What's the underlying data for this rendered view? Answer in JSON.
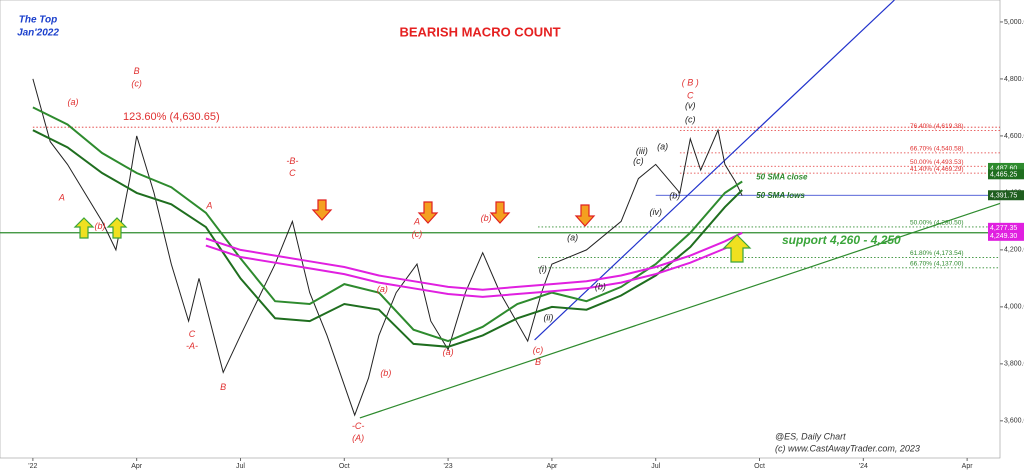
{
  "chart_data": {
    "type": "line",
    "title": "BEARISH MACRO COUNT",
    "top_label": "The Top",
    "top_date": "Jan'2022",
    "support_label": "support 4,260 - 4,250",
    "source": "@ES,  Daily Chart",
    "copyright": "(c) www.CastAwayTrader.com, 2023",
    "xlim": [
      -0.95,
      27.95
    ],
    "ylim": [
      3445,
      5077
    ],
    "xticks": [
      {
        "value": 0,
        "label": "'22"
      },
      {
        "value": 3,
        "label": "Apr"
      },
      {
        "value": 6,
        "label": "Jul"
      },
      {
        "value": 9,
        "label": "Oct"
      },
      {
        "value": 12,
        "label": "'23"
      },
      {
        "value": 15,
        "label": "Apr"
      },
      {
        "value": 18,
        "label": "Jul"
      },
      {
        "value": 21,
        "label": "Oct"
      },
      {
        "value": 24,
        "label": "'24"
      },
      {
        "value": 27,
        "label": "Apr"
      }
    ],
    "yticks": [
      {
        "value": 3600,
        "label": "3,600.00"
      },
      {
        "value": 3800,
        "label": "3,800.00"
      },
      {
        "value": 4000,
        "label": "4,000.00"
      },
      {
        "value": 4200,
        "label": "4,200.00"
      },
      {
        "value": 4400,
        "label": "4,400.00"
      },
      {
        "value": 4600,
        "label": "4,600.00"
      },
      {
        "value": 4800,
        "label": "4,800.00"
      },
      {
        "value": 5000,
        "label": "5,000.00"
      }
    ],
    "series": [
      {
        "color": "#222222",
        "x": [
          0,
          0.5,
          1,
          1.5,
          2,
          2.4,
          2.8,
          3,
          3.5,
          4,
          4.5,
          4.8,
          5.5,
          6,
          7,
          7.5,
          8,
          8.5,
          9.3,
          9.7,
          10,
          10.5,
          11.1,
          11.5,
          12,
          12.5,
          13,
          13.5,
          14.3,
          14.7,
          15,
          16,
          17,
          17.5,
          18,
          18.7,
          19,
          19.3,
          19.8,
          20,
          20.3,
          20.5
        ],
        "values": [
          4800,
          4580,
          4500,
          4400,
          4300,
          4200,
          4450,
          4600,
          4400,
          4150,
          3950,
          4100,
          3770,
          3900,
          4150,
          4300,
          4050,
          3900,
          3620,
          3750,
          3900,
          4050,
          4150,
          3950,
          3850,
          4050,
          4190,
          4050,
          3880,
          4050,
          4150,
          4200,
          4300,
          4450,
          4500,
          4400,
          4590,
          4480,
          4620,
          4500,
          4440,
          4390
        ]
      },
      {
        "name": "50 SMA close",
        "color": "#2e8b2e",
        "x": [
          0,
          1,
          2,
          3,
          4,
          5,
          6,
          7,
          8,
          9,
          10,
          11,
          12,
          13,
          14,
          15,
          16,
          17,
          18,
          19,
          20,
          20.5
        ],
        "values": [
          4700,
          4640,
          4540,
          4470,
          4420,
          4330,
          4170,
          4020,
          4010,
          4080,
          4050,
          3920,
          3880,
          3930,
          4010,
          4050,
          4020,
          4070,
          4150,
          4260,
          4400,
          4440
        ]
      },
      {
        "name": "50 SMA lows",
        "color": "#1f6e1f",
        "x": [
          0,
          1,
          2,
          3,
          4,
          5,
          6,
          7,
          8,
          9,
          10,
          11,
          12,
          13,
          14,
          15,
          16,
          17,
          18,
          19,
          20,
          20.5
        ],
        "values": [
          4620,
          4560,
          4470,
          4400,
          4360,
          4280,
          4100,
          3960,
          3950,
          4010,
          3990,
          3870,
          3860,
          3900,
          3960,
          4000,
          3990,
          4040,
          4110,
          4210,
          4350,
          4410
        ]
      },
      {
        "color": "#e020e0",
        "x": [
          5,
          6,
          7,
          8,
          9,
          10,
          11,
          12,
          13,
          14,
          15,
          16,
          17,
          18,
          19,
          20,
          20.5
        ],
        "values": [
          4240,
          4200,
          4180,
          4160,
          4140,
          4110,
          4090,
          4070,
          4060,
          4070,
          4080,
          4090,
          4110,
          4140,
          4180,
          4230,
          4260
        ]
      },
      {
        "color": "#e020e0",
        "x": [
          5,
          6,
          7,
          8,
          9,
          10,
          11,
          12,
          13,
          14,
          15,
          16,
          17,
          18,
          19,
          20,
          20.5
        ],
        "values": [
          4215,
          4175,
          4155,
          4135,
          4115,
          4085,
          4065,
          4045,
          4035,
          4045,
          4055,
          4065,
          4085,
          4115,
          4155,
          4205,
          4235
        ]
      }
    ],
    "trendlines": [
      {
        "color": "#2233cc",
        "x": [
          14.5,
          24.9
        ],
        "values": [
          3884,
          5077
        ]
      },
      {
        "color": "#2e8b2e",
        "x": [
          9.45,
          27.95
        ],
        "values": [
          3610,
          4363
        ]
      }
    ],
    "hlines": [
      {
        "color": "#2e8b2e",
        "x": -0.95,
        "value": 4260
      },
      {
        "color": "#2233cc",
        "x": 18.0,
        "value": 4391.75
      }
    ],
    "levels": [
      {
        "label": "123.60% (4,630.65)",
        "value": 4630.65,
        "x": 0,
        "color": "#e03030",
        "big": true
      },
      {
        "label": "76.40% (4,619.38)",
        "value": 4619.38,
        "x": 18.7,
        "color": "#e03030"
      },
      {
        "label": "66.70% (4,540.58)",
        "value": 4540.58,
        "x": 18.7,
        "color": "#e03030"
      },
      {
        "label": "50.00% (4,493.53)",
        "value": 4493.53,
        "x": 18.7,
        "color": "#e03030"
      },
      {
        "label": "41.40% (4,469.29)",
        "value": 4469.29,
        "x": 18.7,
        "color": "#e03030"
      },
      {
        "label": "50.00% (4,280.50)",
        "value": 4280.5,
        "x": 14.6,
        "color": "#2e8b2e"
      },
      {
        "label": "61.80% (4,173.54)",
        "value": 4173.54,
        "x": 14.6,
        "color": "#2e8b2e"
      },
      {
        "label": "66.70% (4,137.00)",
        "value": 4137,
        "x": 14.6,
        "color": "#2e8b2e"
      }
    ],
    "price_boxes": [
      {
        "label": "4,487.60",
        "value": 4487.6,
        "color": "#2e8b2e"
      },
      {
        "label": "4,465.25",
        "value": 4465.25,
        "color": "#1f6e1f"
      },
      {
        "label": "4,391.75",
        "value": 4391.75,
        "color": "#1f5e1f"
      },
      {
        "label": "4,277.35",
        "value": 4277.35,
        "color": "#e020e0"
      },
      {
        "label": "4,249.30",
        "value": 4249.3,
        "color": "#e020e0"
      }
    ],
    "annotations": [
      {
        "text": "(a)",
        "x": 1.16,
        "y": 4716,
        "color": "#e03030"
      },
      {
        "text": "B",
        "x": 3.0,
        "y": 4825,
        "color": "#e03030"
      },
      {
        "text": "(c)",
        "x": 3.0,
        "y": 4782,
        "color": "#e03030"
      },
      {
        "text": "A",
        "x": 0.84,
        "y": 4382,
        "color": "#e03030"
      },
      {
        "text": "(b)",
        "x": 1.94,
        "y": 4281,
        "color": "#e03030"
      },
      {
        "text": "A",
        "x": 5.1,
        "y": 4354,
        "color": "#e03030"
      },
      {
        "text": "C",
        "x": 4.6,
        "y": 3902,
        "color": "#e03030"
      },
      {
        "text": "-A-",
        "x": 4.6,
        "y": 3860,
        "color": "#e03030"
      },
      {
        "text": "B",
        "x": 5.5,
        "y": 3716,
        "color": "#e03030"
      },
      {
        "text": "-B-",
        "x": 7.5,
        "y": 4509,
        "color": "#e03030"
      },
      {
        "text": "C",
        "x": 7.5,
        "y": 4467,
        "color": "#e03030"
      },
      {
        "text": "-C-",
        "x": 9.4,
        "y": 3579,
        "color": "#e03030"
      },
      {
        "text": "(A)",
        "x": 9.4,
        "y": 3537,
        "color": "#e03030"
      },
      {
        "text": "(b)",
        "x": 10.2,
        "y": 3765,
        "color": "#e03030"
      },
      {
        "text": "(a)",
        "x": 10.1,
        "y": 4060,
        "color": "#e03030"
      },
      {
        "text": "A",
        "x": 11.1,
        "y": 4298,
        "color": "#e03030"
      },
      {
        "text": "(c)",
        "x": 11.1,
        "y": 4253,
        "color": "#e03030"
      },
      {
        "text": "(a)",
        "x": 12.0,
        "y": 3839,
        "color": "#e03030"
      },
      {
        "text": "(b)",
        "x": 13.1,
        "y": 4309,
        "color": "#e03030"
      },
      {
        "text": "(c)",
        "x": 14.6,
        "y": 3846,
        "color": "#e03030"
      },
      {
        "text": "B",
        "x": 14.6,
        "y": 3804,
        "color": "#e03030"
      },
      {
        "text": "( B )",
        "x": 19.0,
        "y": 4786,
        "color": "#e03030"
      },
      {
        "text": "C",
        "x": 19.0,
        "y": 4740,
        "color": "#e03030"
      },
      {
        "text": "(v)",
        "x": 19.0,
        "y": 4705,
        "color": "#222222"
      },
      {
        "text": "(c)",
        "x": 19.0,
        "y": 4656,
        "color": "#222222"
      },
      {
        "text": "(a)",
        "x": 18.2,
        "y": 4561,
        "color": "#222222"
      },
      {
        "text": "(iii)",
        "x": 17.6,
        "y": 4544,
        "color": "#222222"
      },
      {
        "text": "(c)",
        "x": 17.5,
        "y": 4509,
        "color": "#222222"
      },
      {
        "text": "(b)",
        "x": 18.55,
        "y": 4389,
        "color": "#222222"
      },
      {
        "text": "(iv)",
        "x": 18.0,
        "y": 4330,
        "color": "#222222"
      },
      {
        "text": "(a)",
        "x": 15.6,
        "y": 4242,
        "color": "#222222"
      },
      {
        "text": "(i)",
        "x": 14.74,
        "y": 4130,
        "color": "#222222"
      },
      {
        "text": "(ii)",
        "x": 14.9,
        "y": 3961,
        "color": "#222222"
      },
      {
        "text": "(b)",
        "x": 16.4,
        "y": 4070,
        "color": "#222222"
      }
    ]
  }
}
